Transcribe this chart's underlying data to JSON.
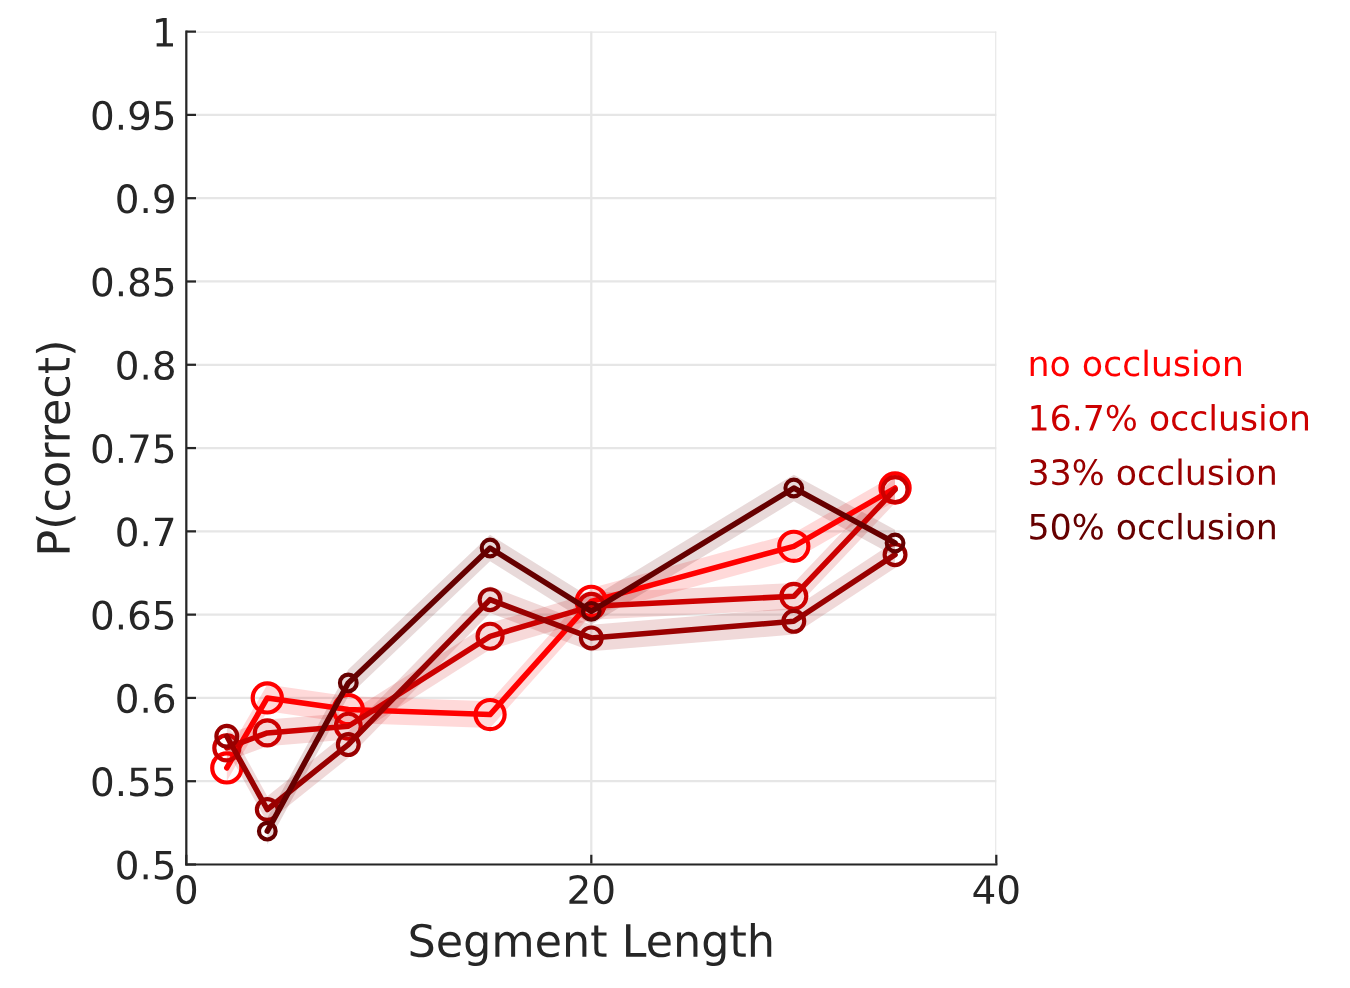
{
  "chart_data": {
    "type": "line",
    "xlabel": "Segment Length",
    "ylabel": "P(correct)",
    "x": [
      2,
      4,
      8,
      15,
      20,
      30,
      35
    ],
    "series": [
      {
        "name": "no occlusion",
        "color": "#ff0000",
        "values": [
          0.558,
          0.6,
          0.593,
          0.59,
          0.658,
          0.691,
          0.726
        ],
        "lower": [
          0.55,
          0.592,
          0.585,
          0.582,
          0.65,
          0.683,
          0.718
        ],
        "upper": [
          0.566,
          0.608,
          0.601,
          0.598,
          0.666,
          0.699,
          0.734
        ]
      },
      {
        "name": "16.7% occlusion",
        "color": "#cc0000",
        "values": [
          0.57,
          0.579,
          0.583,
          0.637,
          0.655,
          0.661,
          0.725
        ],
        "lower": [
          0.562,
          0.571,
          0.575,
          0.629,
          0.647,
          0.653,
          0.717
        ],
        "upper": [
          0.578,
          0.587,
          0.591,
          0.645,
          0.663,
          0.669,
          0.733
        ]
      },
      {
        "name": "33% occlusion",
        "color": "#990000",
        "values": [
          0.577,
          0.533,
          0.572,
          0.659,
          0.636,
          0.646,
          0.686
        ],
        "lower": [
          0.569,
          0.525,
          0.564,
          0.651,
          0.628,
          0.638,
          0.678
        ],
        "upper": [
          0.585,
          0.541,
          0.58,
          0.667,
          0.644,
          0.654,
          0.694
        ]
      },
      {
        "name": "50% occlusion",
        "color": "#660000",
        "values": [
          null,
          0.52,
          0.609,
          0.69,
          0.652,
          0.726,
          0.693
        ],
        "lower": [
          null,
          0.512,
          0.601,
          0.682,
          0.644,
          0.718,
          0.685
        ],
        "upper": [
          null,
          0.528,
          0.617,
          0.698,
          0.66,
          0.734,
          0.701
        ]
      }
    ],
    "xlim": [
      0,
      40
    ],
    "xticks": [
      0,
      20,
      40
    ],
    "ylim": [
      0.5,
      1
    ],
    "yticks": [
      0.5,
      0.55,
      0.6,
      0.65,
      0.7,
      0.75,
      0.8,
      0.85,
      0.9,
      0.95,
      1
    ],
    "grid": true,
    "legend": "right",
    "marker": "circle",
    "line_style": "solid"
  }
}
